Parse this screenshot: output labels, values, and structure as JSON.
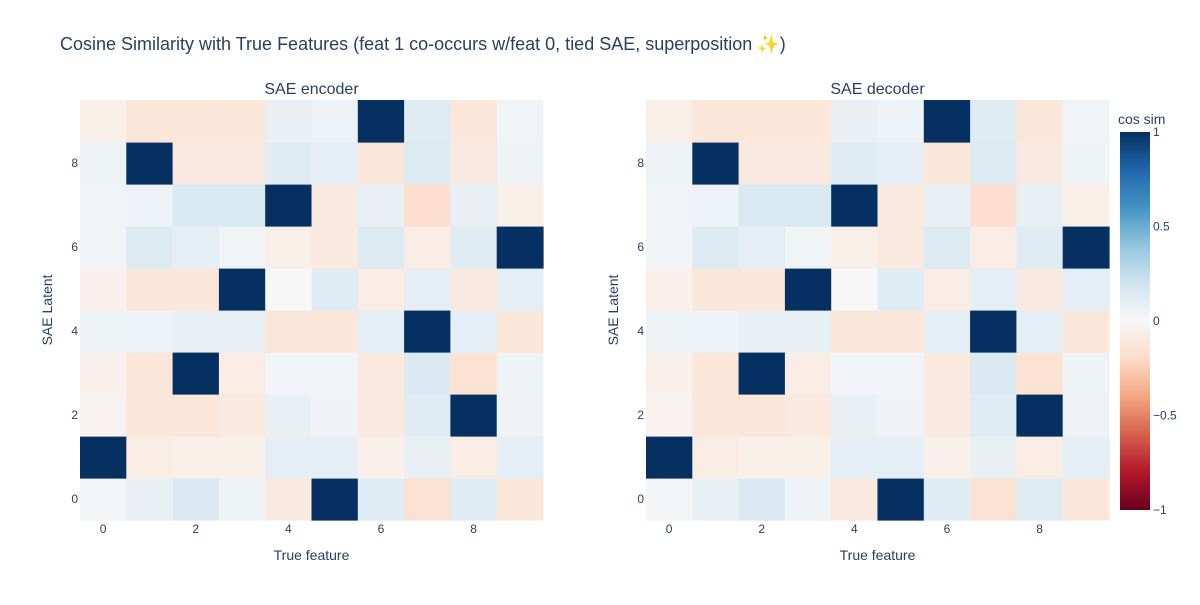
{
  "title": "Cosine Similarity with True Features (feat 1 co-occurs w/feat 0, tied SAE, superposition ✨)",
  "chart_data": [
    {
      "type": "heatmap",
      "title": "SAE encoder",
      "xlabel": "True feature",
      "ylabel": "SAE Latent",
      "x": [
        0,
        1,
        2,
        3,
        4,
        5,
        6,
        7,
        8,
        9
      ],
      "y": [
        0,
        1,
        2,
        3,
        4,
        5,
        6,
        7,
        8,
        9
      ],
      "x_ticks": [
        "0",
        "2",
        "4",
        "6",
        "8"
      ],
      "y_ticks": [
        "0",
        "2",
        "4",
        "6",
        "8"
      ],
      "zlim": [
        -1,
        1
      ],
      "z": [
        [
          0.02,
          0.08,
          0.15,
          0.05,
          -0.1,
          1.0,
          0.12,
          -0.15,
          0.12,
          -0.12
        ],
        [
          1.0,
          -0.08,
          -0.06,
          -0.06,
          0.1,
          0.1,
          -0.05,
          0.08,
          -0.08,
          0.1
        ],
        [
          -0.03,
          -0.12,
          -0.12,
          -0.1,
          0.08,
          0.04,
          -0.1,
          0.12,
          1.0,
          0.04
        ],
        [
          -0.05,
          -0.12,
          1.0,
          -0.08,
          0.03,
          0.03,
          -0.1,
          0.15,
          -0.15,
          0.05
        ],
        [
          0.05,
          0.06,
          0.08,
          0.08,
          -0.12,
          -0.12,
          0.1,
          1.0,
          0.1,
          -0.12
        ],
        [
          -0.05,
          -0.12,
          -0.12,
          1.0,
          0.0,
          0.12,
          -0.08,
          0.1,
          -0.1,
          0.1
        ],
        [
          0.03,
          0.14,
          0.1,
          0.03,
          -0.06,
          -0.1,
          0.14,
          -0.08,
          0.12,
          1.0
        ],
        [
          0.03,
          0.06,
          0.16,
          0.16,
          1.0,
          -0.1,
          0.08,
          -0.17,
          0.08,
          -0.06
        ],
        [
          0.05,
          1.0,
          -0.1,
          -0.1,
          0.12,
          0.1,
          -0.12,
          0.14,
          -0.1,
          0.05
        ],
        [
          -0.06,
          -0.12,
          -0.12,
          -0.12,
          0.08,
          0.06,
          1.0,
          0.13,
          -0.12,
          0.03
        ]
      ]
    },
    {
      "type": "heatmap",
      "title": "SAE decoder",
      "xlabel": "True feature",
      "ylabel": "SAE Latent",
      "x": [
        0,
        1,
        2,
        3,
        4,
        5,
        6,
        7,
        8,
        9
      ],
      "y": [
        0,
        1,
        2,
        3,
        4,
        5,
        6,
        7,
        8,
        9
      ],
      "x_ticks": [
        "0",
        "2",
        "4",
        "6",
        "8"
      ],
      "y_ticks": [
        "0",
        "2",
        "4",
        "6",
        "8"
      ],
      "zlim": [
        -1,
        1
      ],
      "z": [
        [
          0.02,
          0.08,
          0.15,
          0.05,
          -0.1,
          1.0,
          0.12,
          -0.15,
          0.12,
          -0.12
        ],
        [
          1.0,
          -0.08,
          -0.06,
          -0.06,
          0.1,
          0.1,
          -0.05,
          0.08,
          -0.08,
          0.1
        ],
        [
          -0.03,
          -0.12,
          -0.12,
          -0.1,
          0.08,
          0.04,
          -0.1,
          0.12,
          1.0,
          0.04
        ],
        [
          -0.05,
          -0.12,
          1.0,
          -0.08,
          0.03,
          0.03,
          -0.1,
          0.15,
          -0.15,
          0.05
        ],
        [
          0.05,
          0.06,
          0.08,
          0.08,
          -0.12,
          -0.12,
          0.1,
          1.0,
          0.1,
          -0.12
        ],
        [
          -0.05,
          -0.12,
          -0.12,
          1.0,
          0.0,
          0.12,
          -0.08,
          0.1,
          -0.1,
          0.1
        ],
        [
          0.03,
          0.14,
          0.1,
          0.03,
          -0.06,
          -0.1,
          0.14,
          -0.08,
          0.12,
          1.0
        ],
        [
          0.03,
          0.06,
          0.16,
          0.16,
          1.0,
          -0.1,
          0.08,
          -0.17,
          0.08,
          -0.06
        ],
        [
          0.05,
          1.0,
          -0.1,
          -0.1,
          0.12,
          0.1,
          -0.12,
          0.14,
          -0.1,
          0.05
        ],
        [
          -0.06,
          -0.12,
          -0.12,
          -0.12,
          0.08,
          0.06,
          1.0,
          0.13,
          -0.12,
          0.03
        ]
      ]
    }
  ],
  "colorbar": {
    "title": "cos sim",
    "ticks": [
      {
        "value": 1,
        "label": "1"
      },
      {
        "value": 0.5,
        "label": "0.5"
      },
      {
        "value": 0,
        "label": "0"
      },
      {
        "value": -0.5,
        "label": "−0.5"
      },
      {
        "value": -1,
        "label": "−1"
      }
    ],
    "colorscale": [
      [
        0.0,
        "#67001f"
      ],
      [
        0.1,
        "#b2182b"
      ],
      [
        0.2,
        "#d6604d"
      ],
      [
        0.3,
        "#f4a582"
      ],
      [
        0.4,
        "#fddbc7"
      ],
      [
        0.5,
        "#f7f7f7"
      ],
      [
        0.6,
        "#d1e5f0"
      ],
      [
        0.7,
        "#92c5de"
      ],
      [
        0.8,
        "#4393c3"
      ],
      [
        0.9,
        "#2166ac"
      ],
      [
        1.0,
        "#053061"
      ]
    ]
  }
}
